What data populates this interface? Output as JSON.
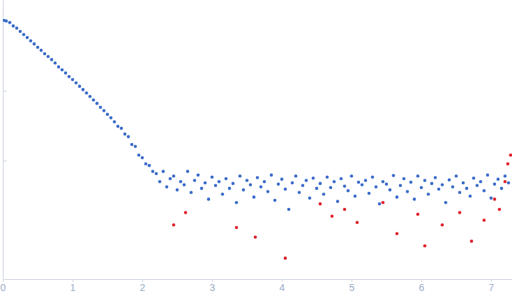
{
  "chart_data": {
    "type": "scatter",
    "log": "y",
    "tick_labels": "x",
    "marker": "circle",
    "xlim": [
      0,
      7.3
    ],
    "xticks": [
      0,
      1,
      2,
      3,
      4,
      5,
      6,
      7
    ],
    "ylim": [
      2e-05,
      0.2
    ],
    "yticks": [
      0.001,
      0.01
    ],
    "series": [
      {
        "color": "#3b6bc9",
        "x": [
          0.02,
          0.05,
          0.1,
          0.15,
          0.2,
          0.25,
          0.3,
          0.35,
          0.4,
          0.45,
          0.5,
          0.55,
          0.6,
          0.65,
          0.7,
          0.75,
          0.8,
          0.85,
          0.9,
          0.95,
          1.0,
          1.05,
          1.1,
          1.15,
          1.2,
          1.25,
          1.3,
          1.35,
          1.4,
          1.45,
          1.5,
          1.55,
          1.6,
          1.65,
          1.7,
          1.75,
          1.8,
          1.85,
          1.9,
          1.95,
          2.0,
          2.05,
          2.1,
          2.15,
          2.2,
          2.25,
          2.3,
          2.35,
          2.4,
          2.45,
          2.5,
          2.55,
          2.6,
          2.65,
          2.7,
          2.75,
          2.8,
          2.85,
          2.9,
          2.95,
          3.0,
          3.05,
          3.1,
          3.15,
          3.2,
          3.25,
          3.3,
          3.35,
          3.4,
          3.45,
          3.5,
          3.55,
          3.6,
          3.65,
          3.7,
          3.75,
          3.8,
          3.85,
          3.9,
          3.95,
          4.0,
          4.05,
          4.1,
          4.15,
          4.2,
          4.25,
          4.3,
          4.35,
          4.4,
          4.45,
          4.5,
          4.55,
          4.6,
          4.65,
          4.7,
          4.75,
          4.8,
          4.85,
          4.9,
          4.95,
          5.0,
          5.05,
          5.1,
          5.15,
          5.2,
          5.25,
          5.3,
          5.35,
          5.4,
          5.45,
          5.5,
          5.55,
          5.6,
          5.65,
          5.7,
          5.75,
          5.8,
          5.85,
          5.9,
          5.95,
          6.0,
          6.05,
          6.1,
          6.15,
          6.2,
          6.25,
          6.3,
          6.35,
          6.4,
          6.45,
          6.5,
          6.55,
          6.6,
          6.65,
          6.7,
          6.75,
          6.8,
          6.85,
          6.9,
          6.95,
          7.0,
          7.05,
          7.1,
          7.15,
          7.2,
          7.25
        ],
        "values": [
          0.102,
          0.1,
          0.095,
          0.085,
          0.079,
          0.071,
          0.064,
          0.058,
          0.052,
          0.047,
          0.042,
          0.038,
          0.034,
          0.031,
          0.028,
          0.025,
          0.022,
          0.02,
          0.018,
          0.016,
          0.0145,
          0.013,
          0.0116,
          0.0104,
          0.0093,
          0.0083,
          0.0074,
          0.0066,
          0.0058,
          0.0052,
          0.0046,
          0.0041,
          0.0036,
          0.0031,
          0.0029,
          0.0024,
          0.0022,
          0.0017,
          0.0016,
          0.0012,
          0.0011,
          0.0009,
          0.00085,
          0.0007,
          0.00065,
          0.0005,
          0.0007,
          0.00042,
          0.00055,
          0.0006,
          0.00038,
          0.0005,
          0.00045,
          0.0007,
          0.00035,
          0.00052,
          0.00062,
          0.0004,
          0.00048,
          0.00028,
          0.00058,
          0.00044,
          0.0005,
          0.00033,
          0.00055,
          0.0004,
          0.00047,
          0.00025,
          0.0006,
          0.00038,
          0.00052,
          0.00045,
          0.0003,
          0.00057,
          0.00042,
          0.0005,
          0.00036,
          0.00062,
          0.00027,
          0.00046,
          0.00054,
          0.00039,
          0.0002,
          0.00048,
          0.0006,
          0.00035,
          0.00044,
          0.00052,
          0.00029,
          0.00056,
          0.0004,
          0.00047,
          0.00033,
          0.00058,
          0.00041,
          0.0005,
          0.00026,
          0.00055,
          0.00043,
          0.00037,
          0.0006,
          0.00031,
          0.00049,
          0.00045,
          0.00052,
          0.00034,
          0.00058,
          0.00042,
          0.00024,
          0.0005,
          0.00046,
          0.00038,
          0.00061,
          0.0003,
          0.00044,
          0.00055,
          0.00036,
          0.00049,
          0.00028,
          0.0006,
          0.00041,
          0.00052,
          0.00033,
          0.00047,
          0.00057,
          0.00039,
          0.00045,
          0.00025,
          0.00053,
          0.00042,
          0.0006,
          0.00035,
          0.00048,
          0.0004,
          0.00031,
          0.00056,
          0.00044,
          0.0005,
          0.00037,
          0.00062,
          0.00029,
          0.00046,
          0.00054,
          0.0004,
          0.0006,
          0.00048
        ]
      },
      {
        "color": "#e0202a",
        "x": [
          2.45,
          2.62,
          3.35,
          3.62,
          4.05,
          4.55,
          4.72,
          4.9,
          5.08,
          5.45,
          5.65,
          5.95,
          6.05,
          6.3,
          6.55,
          6.72,
          6.9,
          7.05,
          7.12,
          7.2,
          7.24,
          7.28
        ],
        "values": [
          0.00012,
          0.00018,
          0.00011,
          8e-05,
          4e-05,
          0.00024,
          0.00016,
          0.0002,
          0.00013,
          0.00025,
          9e-05,
          0.00017,
          6e-05,
          0.00012,
          0.00018,
          7e-05,
          0.00014,
          0.00028,
          0.0002,
          0.0005,
          0.0009,
          0.0012
        ]
      }
    ]
  }
}
